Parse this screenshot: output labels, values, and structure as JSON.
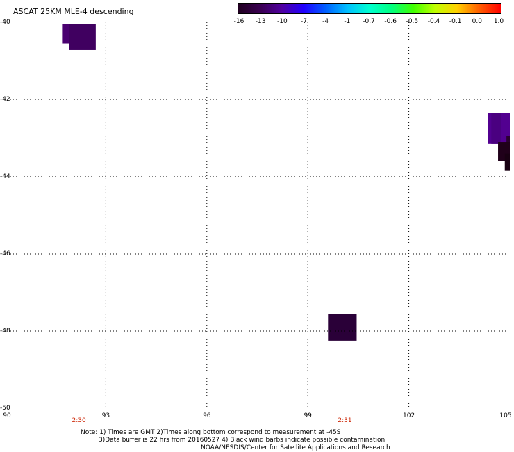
{
  "title": "ASCAT 25KM MLE-4 descending",
  "colorbar": {
    "labels": [
      "-16",
      "-13",
      "-10",
      "-7",
      "-4",
      "-1",
      "-0.7",
      "-0.6",
      "-0.5",
      "-0.4",
      "-0.1",
      "0.0",
      "1.0"
    ],
    "colors": [
      "#200020",
      "#3a0050",
      "#5000a0",
      "#2000ff",
      "#0060ff",
      "#00c0ff",
      "#00ffd0",
      "#00ff80",
      "#40ff00",
      "#c0ff00",
      "#ffd000",
      "#ff6000",
      "#ff0000"
    ]
  },
  "map": {
    "lon_range": [
      90,
      105
    ],
    "lat_range": [
      -50,
      -40
    ],
    "lon_ticks": [
      "90",
      "93",
      "96",
      "99",
      "102",
      "105"
    ],
    "lat_ticks": [
      "-40",
      "-42",
      "-44",
      "-46",
      "-48",
      "-50"
    ],
    "grid_lon": [
      93,
      96,
      99,
      102
    ],
    "grid_lat": [
      -42,
      -44,
      -46,
      -48
    ],
    "cells": [
      {
        "lon": [
          91.7,
          92.2
        ],
        "lat": [
          -40.05,
          -40.55
        ],
        "color": "#4a0070"
      },
      {
        "lon": [
          91.9,
          92.7
        ],
        "lat": [
          -40.05,
          -40.72
        ],
        "color": "#400060"
      },
      {
        "lon": [
          104.35,
          105.0
        ],
        "lat": [
          -42.35,
          -43.15
        ],
        "color": "#520090"
      },
      {
        "lon": [
          104.45,
          104.75
        ],
        "lat": [
          -42.35,
          -43.15
        ],
        "color": "#4a0080"
      },
      {
        "lon": [
          104.9,
          105.15
        ],
        "lat": [
          -42.95,
          -43.2
        ],
        "color": "#2a0030"
      },
      {
        "lon": [
          104.65,
          105.0
        ],
        "lat": [
          -43.1,
          -43.6
        ],
        "color": "#20001a"
      },
      {
        "lon": [
          104.85,
          105.0
        ],
        "lat": [
          -43.4,
          -43.85
        ],
        "color": "#180012"
      },
      {
        "lon": [
          99.6,
          100.45
        ],
        "lat": [
          -47.55,
          -48.25
        ],
        "color": "#2a0038"
      }
    ]
  },
  "times": [
    {
      "lon": 92.2,
      "label": "2:30"
    },
    {
      "lon": 100.1,
      "label": "2:31"
    }
  ],
  "notes": {
    "line1": "Note: 1) Times are GMT 2)Times along bottom correspond to measurement at -45S",
    "line2": "3)Data buffer is 22 hrs from 20160527 4) Black wind barbs indicate possible contamination",
    "line3": "NOAA/NESDIS/Center for Satellite Applications and Research"
  }
}
